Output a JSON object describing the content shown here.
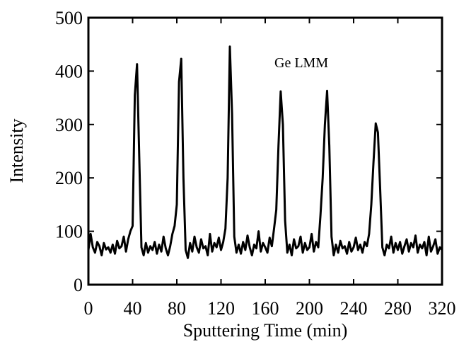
{
  "chart_data": {
    "type": "line",
    "x_label": "Sputtering Time (min)",
    "y_label": "Intensity",
    "annotation": "Ge LMM",
    "xlim": [
      0,
      320
    ],
    "xticks": [
      0,
      40,
      80,
      120,
      160,
      200,
      240,
      280,
      320
    ],
    "ylim": [
      0,
      500
    ],
    "yticks": [
      0,
      100,
      200,
      300,
      400,
      500
    ],
    "grid": false,
    "x": [
      0,
      2,
      4,
      6,
      8,
      10,
      12,
      14,
      16,
      18,
      20,
      22,
      24,
      26,
      28,
      30,
      32,
      34,
      36,
      38,
      40,
      42,
      44,
      46,
      48,
      50,
      52,
      54,
      56,
      58,
      60,
      62,
      64,
      66,
      68,
      70,
      72,
      74,
      76,
      78,
      80,
      82,
      84,
      86,
      88,
      90,
      92,
      94,
      96,
      98,
      100,
      102,
      104,
      106,
      108,
      110,
      112,
      114,
      116,
      118,
      120,
      122,
      124,
      126,
      128,
      130,
      132,
      134,
      136,
      138,
      140,
      142,
      144,
      146,
      148,
      150,
      152,
      154,
      156,
      158,
      160,
      162,
      164,
      166,
      168,
      170,
      172,
      174,
      176,
      178,
      180,
      182,
      184,
      186,
      188,
      190,
      192,
      194,
      196,
      198,
      200,
      202,
      204,
      206,
      208,
      210,
      212,
      214,
      216,
      218,
      220,
      222,
      224,
      226,
      228,
      230,
      232,
      234,
      236,
      238,
      240,
      242,
      244,
      246,
      248,
      250,
      252,
      254,
      256,
      258,
      260,
      262,
      264,
      266,
      268,
      270,
      272,
      274,
      276,
      278,
      280,
      282,
      284,
      286,
      288,
      290,
      292,
      294,
      296,
      298,
      300,
      302,
      304,
      306,
      308,
      310,
      312,
      314,
      316,
      318,
      320
    ],
    "series": [
      {
        "color": "#000000",
        "values": [
          65,
          95,
          70,
          60,
          80,
          72,
          55,
          78,
          66,
          70,
          60,
          75,
          58,
          82,
          68,
          72,
          90,
          62,
          85,
          100,
          110,
          355,
          413,
          240,
          70,
          55,
          78,
          60,
          72,
          65,
          80,
          58,
          75,
          62,
          90,
          68,
          55,
          72,
          95,
          110,
          150,
          380,
          423,
          200,
          65,
          50,
          78,
          62,
          90,
          70,
          60,
          85,
          68,
          72,
          55,
          95,
          62,
          78,
          70,
          88,
          65,
          80,
          105,
          200,
          446,
          320,
          90,
          60,
          75,
          58,
          80,
          65,
          92,
          70,
          55,
          75,
          68,
          100,
          62,
          78,
          70,
          60,
          88,
          72,
          105,
          140,
          260,
          362,
          300,
          120,
          60,
          75,
          55,
          85,
          68,
          72,
          90,
          60,
          78,
          65,
          70,
          95,
          62,
          80,
          70,
          130,
          200,
          300,
          363,
          260,
          90,
          55,
          75,
          60,
          82,
          68,
          72,
          58,
          80,
          62,
          70,
          88,
          65,
          75,
          60,
          80,
          72,
          95,
          150,
          230,
          302,
          285,
          180,
          70,
          55,
          75,
          68,
          90,
          60,
          78,
          65,
          80,
          58,
          72,
          85,
          62,
          78,
          70,
          92,
          60,
          75,
          68,
          80,
          55,
          90,
          62,
          72,
          85,
          58,
          70,
          65
        ]
      }
    ]
  }
}
